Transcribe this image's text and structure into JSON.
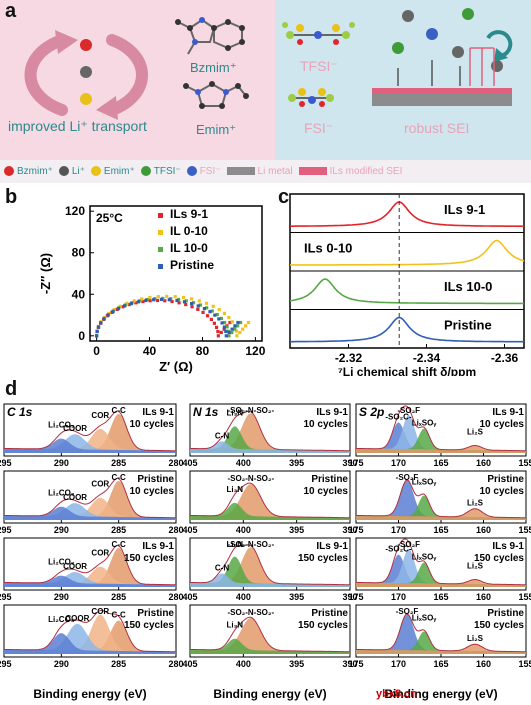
{
  "panel_labels": {
    "a": "a",
    "b": "b",
    "c": "c",
    "d": "d"
  },
  "colors": {
    "pink_bg": "#f7d9e3",
    "blue_bg": "#cfe6ee",
    "teal_text": "#2a8a8c",
    "pink_text": "#e8a3b8",
    "arrow_pink": "#d88aa3",
    "ils91": "#e0262a",
    "il010": "#f2c21b",
    "il100": "#57a847",
    "pristine": "#2f5fb3",
    "li_metal": "#8c8c8c",
    "sei": "#e0607d"
  },
  "panel_a": {
    "cation1": "Bzmim⁺",
    "cation2": "Emim⁺",
    "anion1": "TFSI⁻",
    "anion2": "FSI⁻",
    "transport_label": "improved Li⁺ transport",
    "sei_label": "robust SEI",
    "legend": [
      {
        "icon": "red-sphere-icon",
        "label": "Bzmim⁺",
        "color": "#d92b2b"
      },
      {
        "icon": "gray-sphere-icon",
        "label": "Li⁺",
        "color": "#555555"
      },
      {
        "icon": "yellow-sphere-icon",
        "label": "Emim⁺",
        "color": "#e8c21a"
      },
      {
        "icon": "green-sphere-icon",
        "label": "TFSI⁻",
        "color": "#3f9b3a"
      },
      {
        "icon": "blue-sphere-icon",
        "label": "FSI⁻",
        "color": "#3a60c4"
      },
      {
        "icon": "gray-bar-icon",
        "label": "Li metal",
        "color": "#8c8c8c"
      },
      {
        "icon": "pink-bar-icon",
        "label": "ILs modified SEI",
        "color": "#e0607d"
      }
    ]
  },
  "chart_data": [
    {
      "type": "scatter",
      "panel": "b",
      "annotation": "25°C",
      "xlabel": "Z′ (Ω)",
      "ylabel": "-Z″ (Ω)",
      "xlim": [
        -5,
        125
      ],
      "ylim": [
        -5,
        125
      ],
      "xticks": [
        0,
        40,
        80,
        120
      ],
      "yticks": [
        0,
        40,
        80,
        120
      ],
      "series": [
        {
          "name": "ILs 9-1",
          "color": "#e0262a",
          "arc_x": [
            0,
            92
          ],
          "peak_y": 34
        },
        {
          "name": "IL 0-10",
          "color": "#f2c21b",
          "arc_x": [
            0,
            106
          ],
          "peak_y": 38
        },
        {
          "name": "IL 10-0",
          "color": "#57a847",
          "arc_x": [
            0,
            100
          ],
          "peak_y": 36
        },
        {
          "name": "Pristine",
          "color": "#2f5fb3",
          "arc_x": [
            0,
            98
          ],
          "peak_y": 35
        }
      ]
    },
    {
      "type": "line",
      "panel": "c",
      "xlabel": "⁷Li chemical shift δ/ppm",
      "xlim": [
        -2.305,
        -2.365
      ],
      "xticks": [
        -2.32,
        -2.34,
        -2.36
      ],
      "reference_line": -2.333,
      "series": [
        {
          "name": "ILs 9-1",
          "color": "#e0262a",
          "peak": -2.333
        },
        {
          "name": "ILs 0-10",
          "color": "#f2c21b",
          "peak": -2.358
        },
        {
          "name": "ILs 10-0",
          "color": "#57a847",
          "peak": -2.314
        },
        {
          "name": "Pristine",
          "color": "#2f5fb3",
          "peak": -2.333
        }
      ]
    },
    {
      "type": "line",
      "panel": "d",
      "column_titles": [
        "C 1s",
        "N 1s",
        "S 2p"
      ],
      "xlabel": "Binding energy (eV)",
      "columns": [
        {
          "title": "C 1s",
          "xlim": [
            295,
            280
          ],
          "xticks": [
            295,
            290,
            285,
            280
          ],
          "rows": [
            {
              "sample": "ILs 9-1",
              "cycles": "10 cycles",
              "peaks": [
                {
                  "label": "C-C",
                  "x": 285.0,
                  "h": 0.95,
                  "w": 1.0,
                  "color": "#e39a6a"
                },
                {
                  "label": "COR",
                  "x": 286.6,
                  "h": 0.55,
                  "w": 1.1,
                  "color": "#f0b487"
                },
                {
                  "label": "COOR",
                  "x": 288.8,
                  "h": 0.4,
                  "w": 1.2,
                  "color": "#8db6e8"
                },
                {
                  "label": "Li₂CO₃",
                  "x": 290.0,
                  "h": 0.28,
                  "w": 1.0,
                  "color": "#5b7fd3"
                }
              ]
            },
            {
              "sample": "Pristine",
              "cycles": "10 cycles",
              "peaks": [
                {
                  "label": "C-C",
                  "x": 285.0,
                  "h": 0.95,
                  "w": 1.0,
                  "color": "#e39a6a"
                },
                {
                  "label": "COR",
                  "x": 286.6,
                  "h": 0.5,
                  "w": 1.1,
                  "color": "#f0b487"
                },
                {
                  "label": "COOR",
                  "x": 288.8,
                  "h": 0.35,
                  "w": 1.2,
                  "color": "#8db6e8"
                },
                {
                  "label": "Li₂CO₃",
                  "x": 290.0,
                  "h": 0.25,
                  "w": 1.0,
                  "color": "#5b7fd3"
                }
              ]
            },
            {
              "sample": "ILs 9-1",
              "cycles": "150 cycles",
              "peaks": [
                {
                  "label": "C-C",
                  "x": 285.0,
                  "h": 0.95,
                  "w": 1.0,
                  "color": "#e39a6a"
                },
                {
                  "label": "COR",
                  "x": 286.6,
                  "h": 0.45,
                  "w": 1.1,
                  "color": "#f0b487"
                },
                {
                  "label": "COOR",
                  "x": 288.8,
                  "h": 0.3,
                  "w": 1.2,
                  "color": "#8db6e8"
                },
                {
                  "label": "Li₂CO₃",
                  "x": 290.0,
                  "h": 0.2,
                  "w": 1.0,
                  "color": "#5b7fd3"
                }
              ]
            },
            {
              "sample": "Pristine",
              "cycles": "150 cycles",
              "peaks": [
                {
                  "label": "C-C",
                  "x": 285.0,
                  "h": 0.8,
                  "w": 1.0,
                  "color": "#e39a6a"
                },
                {
                  "label": "COR",
                  "x": 286.6,
                  "h": 0.95,
                  "w": 1.1,
                  "color": "#f0b487"
                },
                {
                  "label": "COOR",
                  "x": 288.6,
                  "h": 0.7,
                  "w": 1.2,
                  "color": "#8db6e8"
                },
                {
                  "label": "Li₂CO₃",
                  "x": 290.0,
                  "h": 0.45,
                  "w": 1.0,
                  "color": "#5b7fd3"
                }
              ]
            }
          ]
        },
        {
          "title": "N 1s",
          "xlim": [
            405,
            390
          ],
          "xticks": [
            405,
            400,
            395,
            390
          ],
          "rows": [
            {
              "sample": "ILs 9-1",
              "cycles": "10 cycles",
              "peaks": [
                {
                  "label": "-SO₂-N-SO₂-",
                  "x": 399.3,
                  "h": 0.95,
                  "w": 1.2,
                  "color": "#e39a6a"
                },
                {
                  "label": "Li₃N",
                  "x": 400.8,
                  "h": 0.6,
                  "w": 0.9,
                  "color": "#57a847"
                },
                {
                  "label": "C-N",
                  "x": 402.0,
                  "h": 0.2,
                  "w": 0.8,
                  "color": "#8db6e8"
                }
              ]
            },
            {
              "sample": "Pristine",
              "cycles": "10 cycles",
              "peaks": [
                {
                  "label": "-SO₂-N-SO₂-",
                  "x": 399.3,
                  "h": 0.85,
                  "w": 1.3,
                  "color": "#e39a6a"
                },
                {
                  "label": "Li₃N",
                  "x": 400.8,
                  "h": 0.35,
                  "w": 0.9,
                  "color": "#57a847"
                }
              ]
            },
            {
              "sample": "ILs 9-1",
              "cycles": "150 cycles",
              "peaks": [
                {
                  "label": "-SO₂-N-SO₂-",
                  "x": 399.3,
                  "h": 0.95,
                  "w": 1.2,
                  "color": "#e39a6a"
                },
                {
                  "label": "Li₃N",
                  "x": 400.8,
                  "h": 0.7,
                  "w": 0.9,
                  "color": "#57a847"
                },
                {
                  "label": "C-N",
                  "x": 402.0,
                  "h": 0.25,
                  "w": 0.8,
                  "color": "#8db6e8"
                }
              ]
            },
            {
              "sample": "Pristine",
              "cycles": "150 cycles",
              "peaks": [
                {
                  "label": "-SO₂-N-SO₂-",
                  "x": 399.3,
                  "h": 0.85,
                  "w": 1.3,
                  "color": "#e39a6a"
                },
                {
                  "label": "Li₃N",
                  "x": 400.8,
                  "h": 0.3,
                  "w": 0.9,
                  "color": "#57a847"
                }
              ]
            }
          ]
        },
        {
          "title": "S 2p",
          "xlim": [
            175,
            155
          ],
          "xticks": [
            175,
            170,
            165,
            160,
            155
          ],
          "rows": [
            {
              "sample": "ILs 9-1",
              "cycles": "10 cycles",
              "peaks": [
                {
                  "label": "-SO₂C-",
                  "x": 170.0,
                  "h": 0.7,
                  "w": 1.0,
                  "color": "#5b7fd3"
                },
                {
                  "label": "-SO₂F",
                  "x": 168.8,
                  "h": 0.9,
                  "w": 1.0,
                  "color": "#8db6e8"
                },
                {
                  "label": "LiₓSOᵧ",
                  "x": 167.0,
                  "h": 0.55,
                  "w": 0.9,
                  "color": "#57a847"
                },
                {
                  "label": "Li₂S",
                  "x": 161.0,
                  "h": 0.12,
                  "w": 1.1,
                  "color": "#e39a6a"
                }
              ]
            },
            {
              "sample": "Pristine",
              "cycles": "10 cycles",
              "peaks": [
                {
                  "label": "-SO₂F",
                  "x": 169.0,
                  "h": 0.95,
                  "w": 1.1,
                  "color": "#5b7fd3"
                },
                {
                  "label": "LiₓSOᵧ",
                  "x": 167.0,
                  "h": 0.55,
                  "w": 0.9,
                  "color": "#57a847"
                },
                {
                  "label": "Li₂S",
                  "x": 161.0,
                  "h": 0.22,
                  "w": 1.2,
                  "color": "#e39a6a"
                }
              ]
            },
            {
              "sample": "ILs 9-1",
              "cycles": "150 cycles",
              "peaks": [
                {
                  "label": "-SO₂C-",
                  "x": 170.0,
                  "h": 0.75,
                  "w": 1.0,
                  "color": "#5b7fd3"
                },
                {
                  "label": "-SO₂F",
                  "x": 168.8,
                  "h": 0.9,
                  "w": 1.0,
                  "color": "#8db6e8"
                },
                {
                  "label": "LiₓSOᵧ",
                  "x": 167.0,
                  "h": 0.55,
                  "w": 0.9,
                  "color": "#57a847"
                },
                {
                  "label": "Li₂S",
                  "x": 161.0,
                  "h": 0.12,
                  "w": 1.1,
                  "color": "#e39a6a"
                }
              ]
            },
            {
              "sample": "Pristine",
              "cycles": "150 cycles",
              "peaks": [
                {
                  "label": "-SO₂F",
                  "x": 169.0,
                  "h": 0.95,
                  "w": 1.1,
                  "color": "#5b7fd3"
                },
                {
                  "label": "LiₓSOᵧ",
                  "x": 167.0,
                  "h": 0.5,
                  "w": 0.9,
                  "color": "#57a847"
                },
                {
                  "label": "Li₂S",
                  "x": 161.0,
                  "h": 0.18,
                  "w": 1.2,
                  "color": "#e39a6a"
                }
              ]
            }
          ]
        }
      ]
    }
  ],
  "watermark": "ybx8.cn"
}
